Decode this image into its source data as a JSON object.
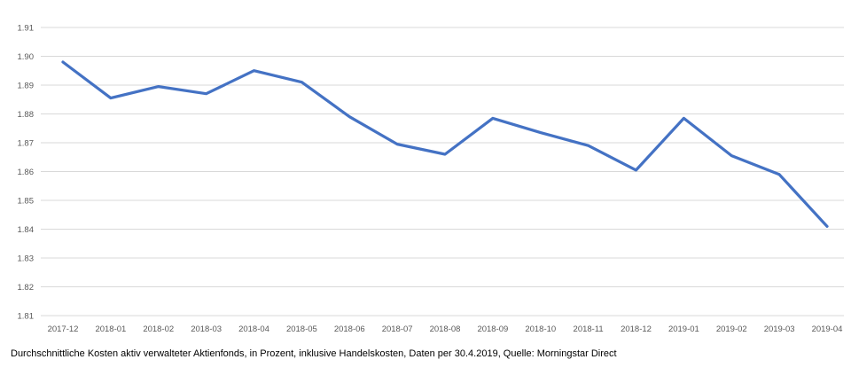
{
  "caption": "Durchschnittliche Kosten aktiv verwalteter Aktienfonds, in Prozent, inklusive Handelskosten, Daten per 30.4.2019, Quelle: Morningstar Direct",
  "colors": {
    "line": "#4472C4",
    "gridline": "#D9D9D9",
    "tick_label": "#595959",
    "caption_text": "#000000",
    "background": "#FFFFFF"
  },
  "chart_data": {
    "type": "line",
    "title": "",
    "xlabel": "",
    "ylabel": "",
    "categories": [
      "2017-12",
      "2018-01",
      "2018-02",
      "2018-03",
      "2018-04",
      "2018-05",
      "2018-06",
      "2018-07",
      "2018-08",
      "2018-09",
      "2018-10",
      "2018-11",
      "2018-12",
      "2019-01",
      "2019-02",
      "2019-03",
      "2019-04"
    ],
    "series": [
      {
        "name": "Durchschnittliche Kosten aktiv verwalteter Aktienfonds (%)",
        "values": [
          1.898,
          1.8855,
          1.8895,
          1.887,
          1.895,
          1.891,
          1.879,
          1.8695,
          1.866,
          1.8785,
          1.8735,
          1.869,
          1.8605,
          1.8785,
          1.8655,
          1.859,
          1.841
        ]
      }
    ],
    "ylim": [
      1.81,
      1.91
    ],
    "y_tick_step": 0.01,
    "y_tick_labels": [
      "1.91",
      "1.90",
      "1.89",
      "1.88",
      "1.87",
      "1.86",
      "1.85",
      "1.84",
      "1.83",
      "1.82",
      "1.81"
    ],
    "grid": "horizontal-only",
    "legend": "none",
    "line_color": "#4472C4",
    "line_width": 3.25
  }
}
